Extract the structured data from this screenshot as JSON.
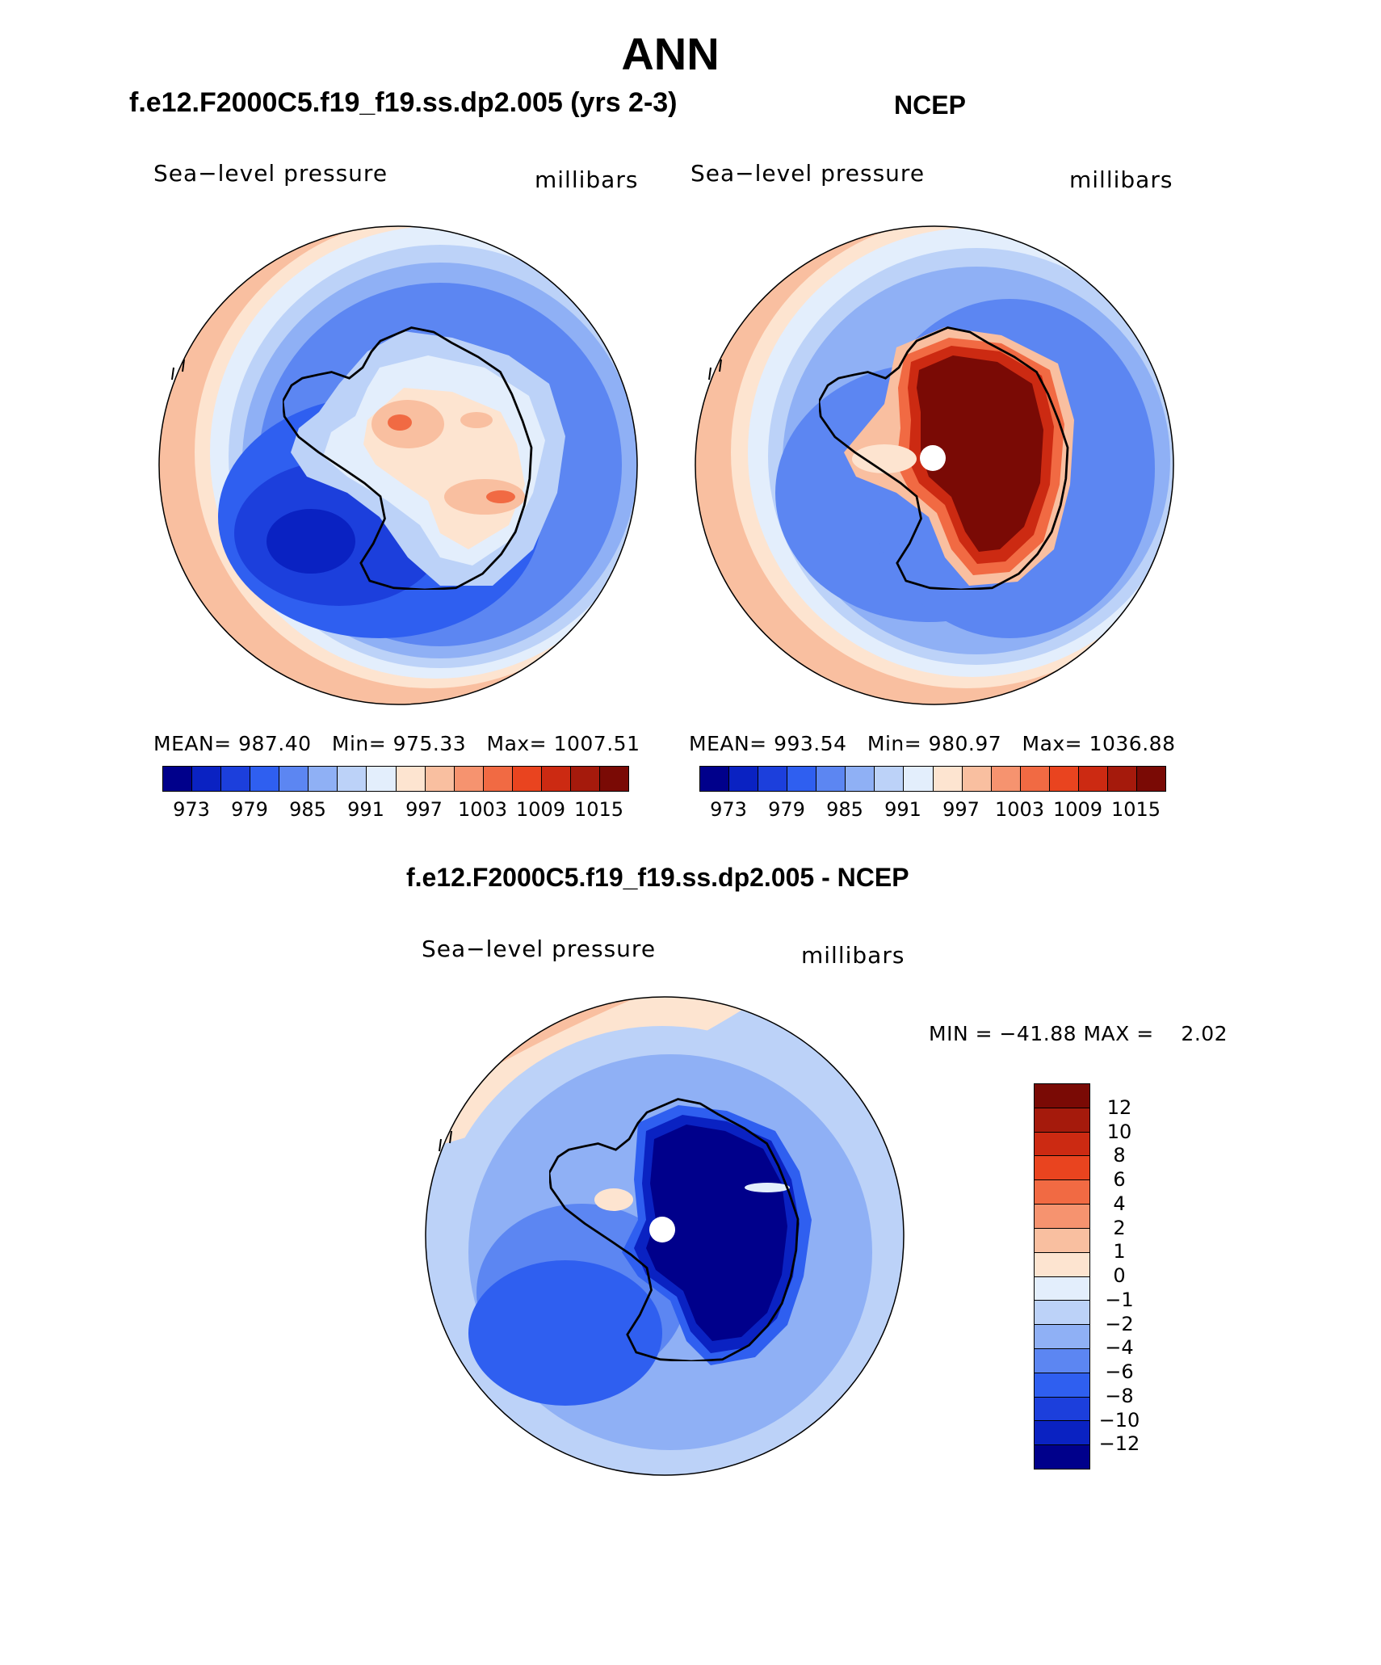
{
  "figure_title": "ANN",
  "panels": [
    {
      "title": "f.e12.F2000C5.f19_f19.ss.dp2.005 (yrs 2-3)",
      "variable": "Sea−level pressure",
      "units": "millibars",
      "stats": {
        "mean_label": "MEAN=",
        "mean": "987.40",
        "min_label": "Min=",
        "min": "975.33",
        "max_label": "Max=",
        "max": "1007.51"
      }
    },
    {
      "title": "NCEP",
      "variable": "Sea−level pressure",
      "units": "millibars",
      "stats": {
        "mean_label": "MEAN=",
        "mean": "993.54",
        "min_label": "Min=",
        "min": "980.97",
        "max_label": "Max=",
        "max": "1036.88"
      }
    },
    {
      "title": "f.e12.F2000C5.f19_f19.ss.dp2.005 - NCEP",
      "variable": "Sea−level pressure",
      "units": "millibars",
      "minmax": "MIN = −41.88 MAX =    2.02"
    }
  ],
  "colorbar_abs": {
    "colors": [
      "#00008b",
      "#0a22c2",
      "#1c3fdc",
      "#2f5ff0",
      "#5c86f2",
      "#8fb0f5",
      "#bcd2f8",
      "#e3eefc",
      "#fde4d0",
      "#f9bfa0",
      "#f6936f",
      "#f16a43",
      "#e9441f",
      "#cc2a12",
      "#a51a0c",
      "#7a0a05"
    ],
    "labels": [
      "973",
      "979",
      "985",
      "991",
      "997",
      "1003",
      "1009",
      "1015"
    ]
  },
  "colorbar_diff": {
    "colors": [
      "#00008b",
      "#0a22c2",
      "#1c3fdc",
      "#2f5ff0",
      "#5c86f2",
      "#8fb0f5",
      "#bcd2f8",
      "#e3eefc",
      "#fde4d0",
      "#f9bfa0",
      "#f6936f",
      "#f16a43",
      "#e9441f",
      "#cc2a12",
      "#a51a0c",
      "#7a0a05"
    ],
    "labels": [
      "12",
      "10",
      "8",
      "6",
      "4",
      "2",
      "1",
      "0",
      "−1",
      "−2",
      "−4",
      "−6",
      "−8",
      "−10",
      "−12"
    ]
  },
  "chart_data": {
    "type": "heatmap",
    "title": "ANN",
    "projection": "south polar stereographic",
    "panels": [
      {
        "name": "f.e12.F2000C5.f19_f19.ss.dp2.005 (yrs 2-3)",
        "mean": 987.4,
        "min": 975.33,
        "max": 1007.51,
        "levels": [
          973,
          976,
          979,
          982,
          985,
          988,
          991,
          994,
          997,
          1000,
          1003,
          1006,
          1009,
          1012,
          1015
        ]
      },
      {
        "name": "NCEP",
        "mean": 993.54,
        "min": 980.97,
        "max": 1036.88,
        "levels": [
          973,
          976,
          979,
          982,
          985,
          988,
          991,
          994,
          997,
          1000,
          1003,
          1006,
          1009,
          1012,
          1015
        ]
      },
      {
        "name": "f.e12.F2000C5.f19_f19.ss.dp2.005 - NCEP",
        "min": -41.88,
        "max": 2.02,
        "levels": [
          -12,
          -10,
          -8,
          -6,
          -4,
          -2,
          -1,
          0,
          1,
          2,
          4,
          6,
          8,
          10,
          12
        ]
      }
    ]
  }
}
